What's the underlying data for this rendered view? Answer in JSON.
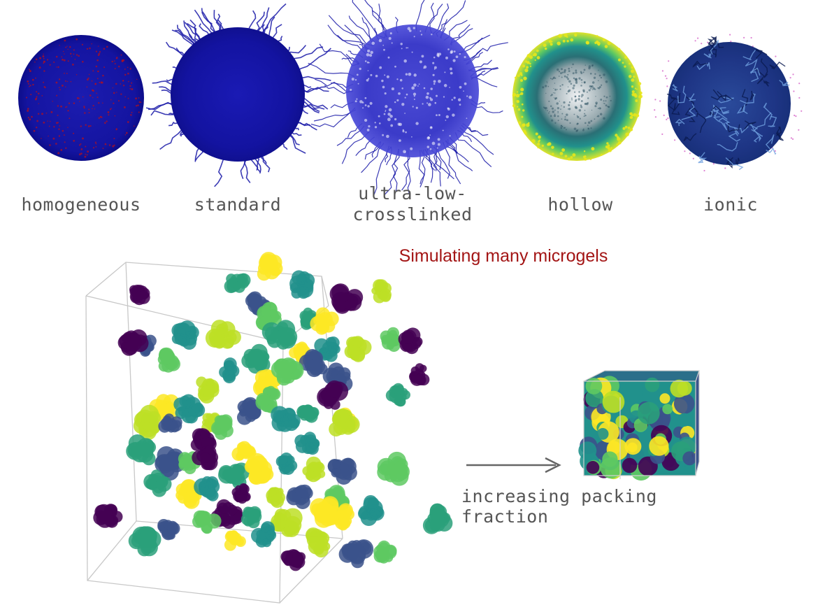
{
  "palette": {
    "title_red": "#a31515",
    "label_gray": "#555555",
    "arrow_gray": "#666666",
    "gel_blue": "#1a1aa8",
    "gel_blue_dark": "#0d0d8a",
    "crosslinker_red": "#b01020",
    "viridis": [
      "#440154",
      "#3b528b",
      "#21918c",
      "#2aa07a",
      "#5ec962",
      "#bddf26",
      "#fde725"
    ]
  },
  "microgel_types": [
    {
      "id": "homogeneous",
      "lines": [
        "homogeneous"
      ],
      "style": "dense-blue-red-dots"
    },
    {
      "id": "standard",
      "lines": [
        "standard"
      ],
      "style": "dense-blue-fuzzy"
    },
    {
      "id": "ultra-low-crosslinked",
      "lines": [
        "ultra-low-",
        "crosslinked"
      ],
      "style": "sparse-blue-fuzzy"
    },
    {
      "id": "hollow",
      "lines": [
        "hollow"
      ],
      "style": "viridis-shell-hollow-core"
    },
    {
      "id": "ionic",
      "lines": [
        "ionic"
      ],
      "style": "navy-chains-with-ions"
    }
  ],
  "simulation": {
    "title": "Simulating many microgels",
    "arrow_caption": "increasing packing fraction",
    "dilute_box_description": "sparse cube of microgels",
    "dense_box_description": "densely packed cube of microgels"
  }
}
